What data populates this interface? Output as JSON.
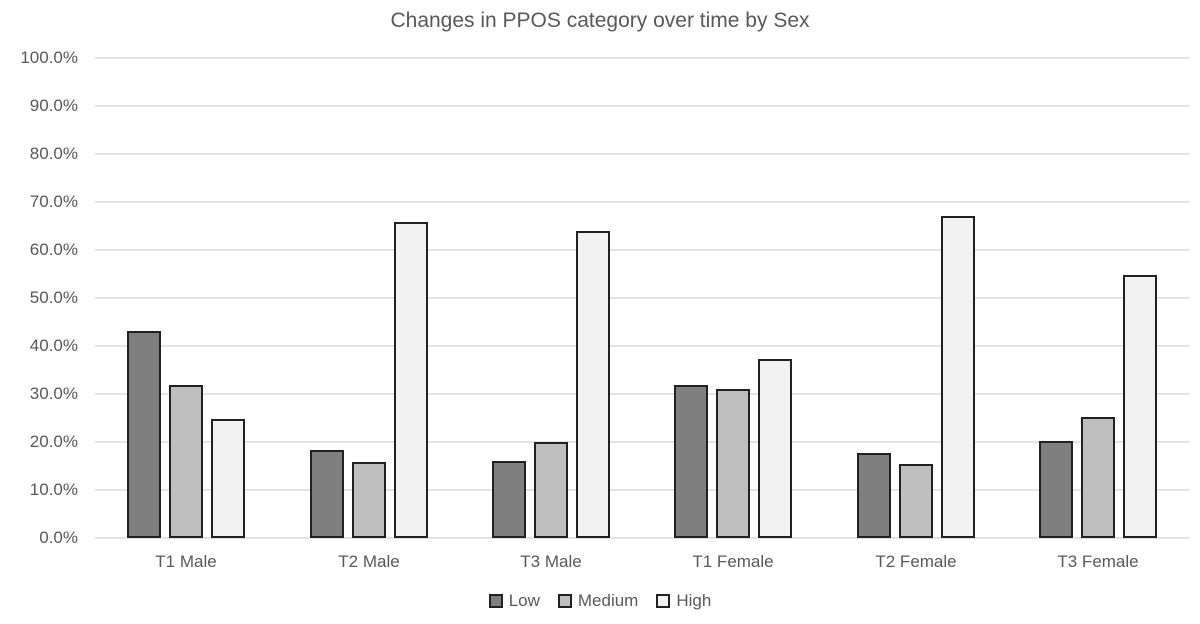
{
  "chart_data": {
    "type": "bar",
    "title": "Changes in PPOS category over time by Sex",
    "categories": [
      "T1 Male",
      "T2 Male",
      "T3 Male",
      "T1 Female",
      "T2 Female",
      "T3 Female"
    ],
    "series": [
      {
        "name": "Low",
        "color": "#7f7f7f",
        "values": [
          43.2,
          18.4,
          16.0,
          31.8,
          17.7,
          20.3
        ]
      },
      {
        "name": "Medium",
        "color": "#bfbfbf",
        "values": [
          31.9,
          15.8,
          20.0,
          31.0,
          15.5,
          25.3
        ]
      },
      {
        "name": "High",
        "color": "#f2f2f2",
        "values": [
          24.8,
          65.9,
          64.0,
          37.3,
          67.0,
          54.7
        ]
      }
    ],
    "xlabel": "",
    "ylabel": "",
    "ylim": [
      0,
      100
    ],
    "y_ticks": [
      "0.0%",
      "10.0%",
      "20.0%",
      "30.0%",
      "40.0%",
      "50.0%",
      "60.0%",
      "70.0%",
      "80.0%",
      "90.0%",
      "100.0%"
    ],
    "grid": true,
    "legend_position": "bottom",
    "colors": {
      "bar_border": "#212121",
      "gridline": "#e4e4e4",
      "text": "#595959",
      "background": "#ffffff"
    }
  }
}
